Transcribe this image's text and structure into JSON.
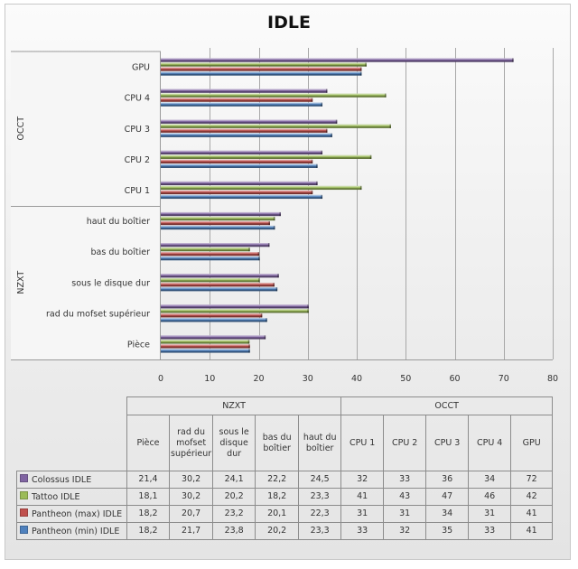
{
  "chart_data": {
    "type": "bar",
    "orientation": "horizontal",
    "title": "IDLE",
    "xlabel": "",
    "ylabel": "",
    "xlim": [
      0,
      80
    ],
    "x_ticks": [
      0,
      10,
      20,
      30,
      40,
      50,
      60,
      70,
      80
    ],
    "grid": true,
    "legend": "data-table-bottom",
    "groups": [
      {
        "name": "NZXT",
        "categories": [
          "Pièce",
          "rad du mofset supérieur",
          "sous le disque dur",
          "bas du boîtier",
          "haut du boîtier"
        ]
      },
      {
        "name": "OCCT",
        "categories": [
          "CPU 1",
          "CPU 2",
          "CPU 3",
          "CPU 4",
          "GPU"
        ]
      }
    ],
    "categories": [
      "Pièce",
      "rad du mofset supérieur",
      "sous le disque dur",
      "bas du boîtier",
      "haut du boîtier",
      "CPU 1",
      "CPU 2",
      "CPU 3",
      "CPU 4",
      "GPU"
    ],
    "table_column_headers": [
      "Pièce",
      "rad du mofset supérieur",
      "sous le disque dur",
      "bas du boîtier",
      "haut du boîtier",
      "CPU 1",
      "CPU 2",
      "CPU 3",
      "CPU 4",
      "GPU"
    ],
    "series": [
      {
        "name": "Colossus IDLE",
        "color": "#8064a2",
        "values": [
          21.4,
          30.2,
          24.1,
          22.2,
          24.5,
          32,
          33,
          36,
          34,
          72
        ],
        "display": [
          "21,4",
          "30,2",
          "24,1",
          "22,2",
          "24,5",
          "32",
          "33",
          "36",
          "34",
          "72"
        ]
      },
      {
        "name": "Tattoo IDLE",
        "color": "#9bbb59",
        "values": [
          18.1,
          30.2,
          20.2,
          18.2,
          23.3,
          41,
          43,
          47,
          46,
          42
        ],
        "display": [
          "18,1",
          "30,2",
          "20,2",
          "18,2",
          "23,3",
          "41",
          "43",
          "47",
          "46",
          "42"
        ]
      },
      {
        "name": "Pantheon (max) IDLE",
        "color": "#c0504d",
        "values": [
          18.2,
          20.7,
          23.2,
          20.1,
          22.3,
          31,
          31,
          34,
          31,
          41
        ],
        "display": [
          "18,2",
          "20,7",
          "23,2",
          "20,1",
          "22,3",
          "31",
          "31",
          "34",
          "31",
          "41"
        ]
      },
      {
        "name": "Pantheon (min) IDLE",
        "color": "#4f81bd",
        "values": [
          18.2,
          21.7,
          23.8,
          20.2,
          23.3,
          33,
          32,
          35,
          33,
          41
        ],
        "display": [
          "18,2",
          "21,7",
          "23,8",
          "20,2",
          "23,3",
          "33",
          "32",
          "35",
          "33",
          "41"
        ]
      }
    ]
  }
}
